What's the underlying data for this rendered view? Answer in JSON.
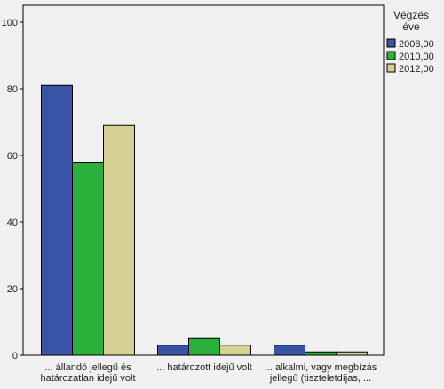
{
  "chart_data": {
    "type": "bar",
    "title": "",
    "xlabel": "",
    "ylabel": "",
    "ylim": [
      0,
      100
    ],
    "yticks": [
      0,
      20,
      40,
      60,
      80,
      100
    ],
    "grid": false,
    "legend_position": "right",
    "legend_title_lines": [
      "Végzés",
      "éve"
    ],
    "categories": [
      [
        "... állandó jellegű és",
        "határozatlan idejű volt"
      ],
      [
        "... határozott idejű volt"
      ],
      [
        "... alkalmi, vagy megbízás",
        "jellegű (tiszteletdíjas, ..."
      ]
    ],
    "series": [
      {
        "name": "2008,00",
        "color": "#3953a6",
        "values": [
          81,
          3,
          3
        ]
      },
      {
        "name": "2010,00",
        "color": "#2bb13b",
        "values": [
          58,
          5,
          1
        ]
      },
      {
        "name": "2012,00",
        "color": "#d6d193",
        "values": [
          69,
          3,
          1
        ]
      }
    ],
    "colors": {
      "background": "#f0f0f0",
      "axis": "#000000"
    }
  }
}
